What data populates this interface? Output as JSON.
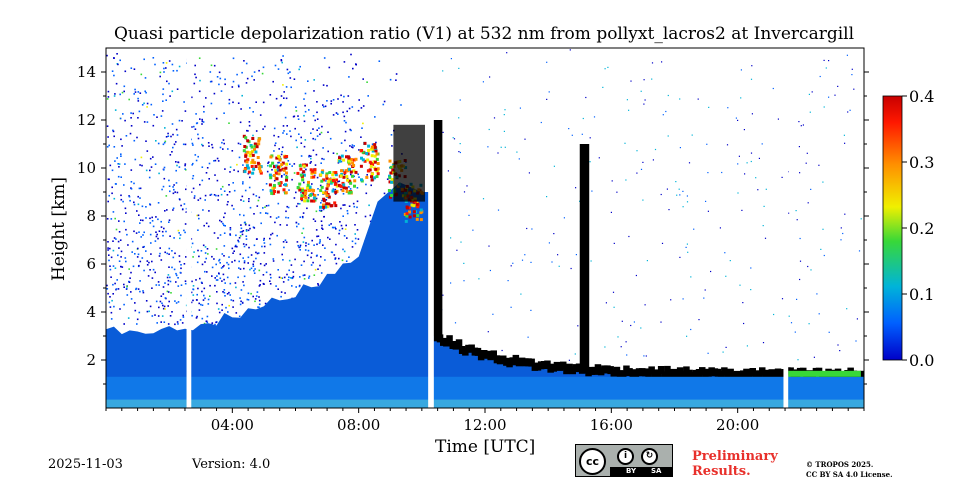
{
  "chart_data": {
    "type": "heatmap",
    "title": "Quasi particle depolarization ratio (V1) at 532 nm from pollyxt_lacros2 at Invercargill",
    "xlabel": "Time [UTC]",
    "ylabel": "Height [km]",
    "xlim_hours": [
      0,
      24
    ],
    "ylim_km": [
      0,
      15
    ],
    "x_ticks": [
      {
        "hour": 4,
        "label": "04:00"
      },
      {
        "hour": 8,
        "label": "08:00"
      },
      {
        "hour": 12,
        "label": "12:00"
      },
      {
        "hour": 16,
        "label": "16:00"
      },
      {
        "hour": 20,
        "label": "20:00"
      }
    ],
    "y_ticks": [
      {
        "value": 2,
        "label": "2"
      },
      {
        "value": 4,
        "label": "4"
      },
      {
        "value": 6,
        "label": "6"
      },
      {
        "value": 8,
        "label": "8"
      },
      {
        "value": 10,
        "label": "10"
      },
      {
        "value": 12,
        "label": "12"
      },
      {
        "value": 14,
        "label": "14"
      }
    ],
    "colorbar": {
      "range": [
        0.0,
        0.4
      ],
      "ticks": [
        {
          "value": 0.0,
          "label": "0.0"
        },
        {
          "value": 0.1,
          "label": "0.1"
        },
        {
          "value": 0.2,
          "label": "0.2"
        },
        {
          "value": 0.3,
          "label": "0.3"
        },
        {
          "value": 0.4,
          "label": "0.4"
        }
      ],
      "colors": [
        "#0000c8",
        "#0060ff",
        "#00b4d8",
        "#38d838",
        "#f0f000",
        "#ff9000",
        "#ff1800",
        "#c80000"
      ]
    },
    "data_gaps_hours": [
      {
        "start": 2.55,
        "end": 2.7
      },
      {
        "start": 10.2,
        "end": 10.38
      },
      {
        "start": 21.45,
        "end": 21.6
      }
    ],
    "regions": [
      {
        "kind": "boundary_layer",
        "start_hour": 0,
        "end_hour": 24,
        "bottom_km": 0,
        "top_km": 1.3,
        "value": 0.04
      },
      {
        "kind": "low_depol_layer",
        "start_hour": 0,
        "end_hour": 10.5,
        "top_km_at_start": 3.2,
        "top_km_at_end": 9.0,
        "value": 0.02
      },
      {
        "kind": "noisy_aerosol",
        "start_hour": 0,
        "end_hour": 8.0,
        "bottom_km": 3.5,
        "top_km": 13.0,
        "value": 0.05
      },
      {
        "kind": "cirrus",
        "start_hour": 4.2,
        "end_hour": 10.2,
        "bottom_km": 7.8,
        "top_km": 11.5,
        "value": 0.3
      },
      {
        "kind": "low_cloud",
        "start_hour": 10.4,
        "end_hour": 24,
        "top_km_at_start": 3.0,
        "top_km_at_end": 1.4,
        "value": "attenuated"
      },
      {
        "kind": "mid_cloud_column",
        "start_hour": 15.0,
        "end_hour": 15.3,
        "bottom_km": 1.5,
        "top_km": 11.0,
        "value": "attenuated"
      }
    ]
  },
  "footer": {
    "date": "2025-11-03",
    "version": "Version: 4.0",
    "cc_by": "BY",
    "cc_sa": "SA",
    "preliminary_line1": "Preliminary",
    "preliminary_line2": "Results.",
    "copyright_line1": "© TROPOS 2025.",
    "copyright_line2": "CC BY SA 4.0 License."
  }
}
